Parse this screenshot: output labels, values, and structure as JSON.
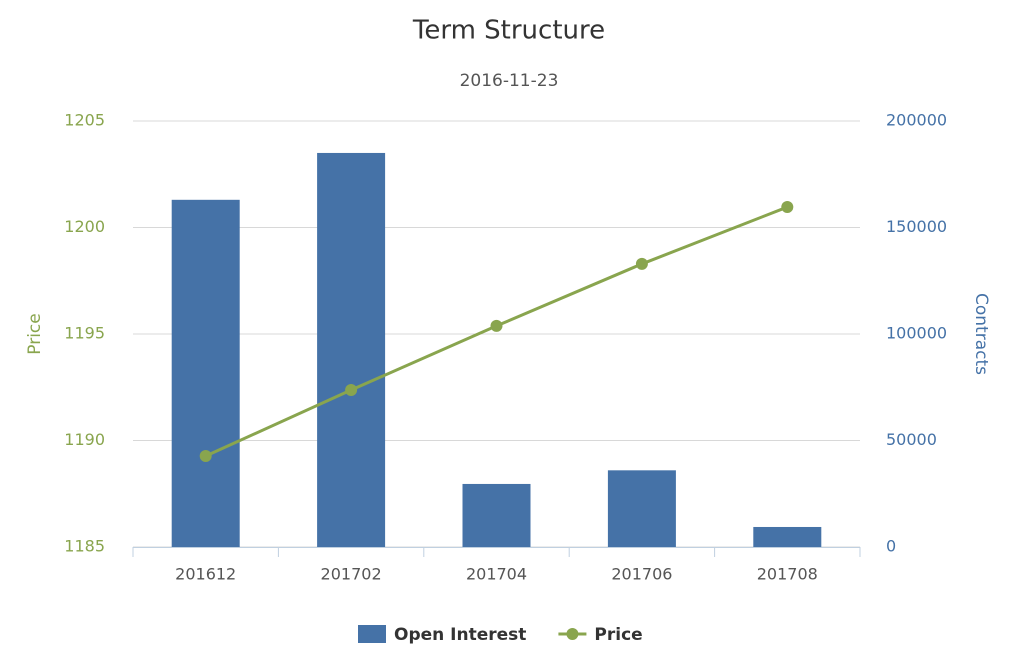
{
  "chart_data": {
    "type": "combo",
    "title": "Term Structure",
    "subtitle": "2016-11-23",
    "categories": [
      "201612",
      "201702",
      "201704",
      "201706",
      "201708"
    ],
    "y_label": "Price",
    "y2_label": "Contracts",
    "ylim": [
      1185,
      1205
    ],
    "yticks": [
      1185,
      1190,
      1195,
      1200,
      1205
    ],
    "y2lim": [
      0,
      200000
    ],
    "y2ticks": [
      0,
      50000,
      100000,
      150000,
      200000
    ],
    "grid": true,
    "legend": "bottom",
    "series": [
      {
        "name": "Open Interest",
        "type": "bar",
        "axis": "y2",
        "color": "#4572a7",
        "values": [
          163000,
          185000,
          29600,
          36000,
          9400
        ]
      },
      {
        "name": "Price",
        "type": "line",
        "color": "#89a54e",
        "values": [
          1189.27,
          1192.37,
          1195.38,
          1198.29,
          1200.96
        ]
      }
    ]
  }
}
